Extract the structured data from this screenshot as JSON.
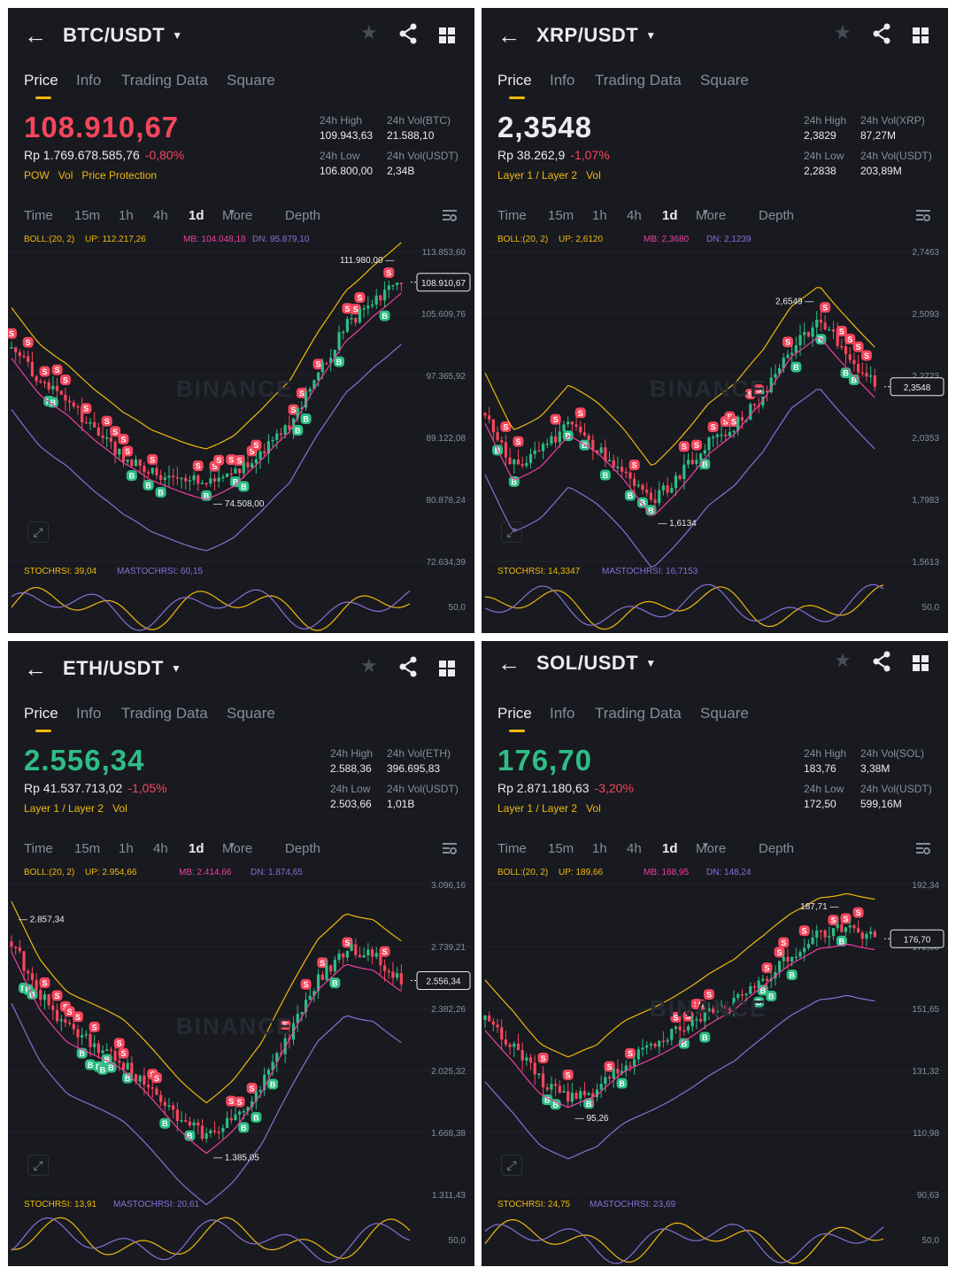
{
  "colors": {
    "bg": "#181a20",
    "up": "#2ebd85",
    "down": "#f6465d",
    "accent": "#f0b90b",
    "text": "#eaecef",
    "muted": "#848e9c",
    "mb": "#ef3fa0",
    "dn": "#8a6fd6"
  },
  "icons": {
    "back": "arrow-left-icon",
    "caret": "caret-down-icon",
    "favorite": "star-icon",
    "share": "share-icon",
    "layout": "grid-icon",
    "settings": "chart-settings-icon",
    "expand": "expand-icon"
  },
  "tabs": [
    "Price",
    "Info",
    "Trading Data",
    "Square"
  ],
  "timeframes": [
    "Time",
    "15m",
    "1h",
    "4h",
    "1d",
    "More",
    "Depth"
  ],
  "selected_timeframe": "1d",
  "watermark": "BINANCE",
  "panels": [
    {
      "pair": "BTC/USDT",
      "price": "108.910,67",
      "price_color": "down",
      "fiat": "Rp 1.769.678.585,76",
      "change": "-0,80%",
      "tags": [
        "POW",
        "Vol",
        "Price Protection"
      ],
      "stats": {
        "high_label": "24h High",
        "high": "109.943,63",
        "vol1_label": "24h Vol(BTC)",
        "vol1": "21.588,10",
        "low_label": "24h Low",
        "low": "106.800,00",
        "vol2_label": "24h Vol(USDT)",
        "vol2": "2,34B"
      },
      "boll": {
        "label": "BOLL:(20, 2)",
        "up": "UP: 112.217,26",
        "mb": "MB: 104.048,18",
        "dn": "DN: 95.879,10"
      },
      "stoch": {
        "k": "STOCHRSI: 39,04",
        "d": "MASTOCHRSI: 60,15"
      },
      "y_ticks": [
        "113.853,60",
        "105.609,76",
        "97.365,92",
        "89.122,08",
        "80.878,24",
        "72.634,39"
      ],
      "stoch_tick": "50,0",
      "current_label": "108.910,67",
      "high_marker": "111.980,00",
      "low_marker": "74.508,00"
    },
    {
      "pair": "XRP/USDT",
      "price": "2,3548",
      "price_color": "neutral",
      "fiat": "Rp 38.262,9",
      "change": "-1,07%",
      "tags": [
        "Layer 1 / Layer 2",
        "Vol"
      ],
      "stats": {
        "high_label": "24h High",
        "high": "2,3829",
        "vol1_label": "24h Vol(XRP)",
        "vol1": "87,27M",
        "low_label": "24h Low",
        "low": "2,2838",
        "vol2_label": "24h Vol(USDT)",
        "vol2": "203,89M"
      },
      "boll": {
        "label": "BOLL:(20, 2)",
        "up": "UP: 2,6120",
        "mb": "MB: 2,3680",
        "dn": "DN: 2,1239"
      },
      "stoch": {
        "k": "STOCHRSI: 14,3347",
        "d": "MASTOCHRSI: 16,7153"
      },
      "y_ticks": [
        "2,7463",
        "2,5093",
        "2,2723",
        "2,0353",
        "1,7983",
        "1,5613"
      ],
      "stoch_tick": "50,0",
      "current_label": "2,3548",
      "high_marker": "2,6549",
      "low_marker": "1,6134"
    },
    {
      "pair": "ETH/USDT",
      "price": "2.556,34",
      "price_color": "up",
      "fiat": "Rp 41.537.713,02",
      "change": "-1,05%",
      "tags": [
        "Layer 1 / Layer 2",
        "Vol"
      ],
      "stats": {
        "high_label": "24h High",
        "high": "2.588,36",
        "vol1_label": "24h Vol(ETH)",
        "vol1": "396.695,83",
        "low_label": "24h Low",
        "low": "2.503,66",
        "vol2_label": "24h Vol(USDT)",
        "vol2": "1,01B"
      },
      "boll": {
        "label": "BOLL:(20, 2)",
        "up": "UP: 2.954,66",
        "mb": "MB: 2.414,66",
        "dn": "DN: 1.874,65"
      },
      "stoch": {
        "k": "STOCHRSI: 13,91",
        "d": "MASTOCHRSI: 20,61"
      },
      "y_ticks": [
        "3.096,16",
        "2.739,21",
        "2.382,26",
        "2.025,32",
        "1.668,38",
        "1.311,43"
      ],
      "stoch_tick": "50,0",
      "current_label": "2.556,34",
      "high_marker": "2.857,34",
      "low_marker": "1.385,05"
    },
    {
      "pair": "SOL/USDT",
      "price": "176,70",
      "price_color": "up",
      "fiat": "Rp 2.871.180,63",
      "change": "-3,20%",
      "tags": [
        "Layer 1 / Layer 2",
        "Vol"
      ],
      "stats": {
        "high_label": "24h High",
        "high": "183,76",
        "vol1_label": "24h Vol(SOL)",
        "vol1": "3,38M",
        "low_label": "24h Low",
        "low": "172,50",
        "vol2_label": "24h Vol(USDT)",
        "vol2": "599,16M"
      },
      "boll": {
        "label": "BOLL:(20, 2)",
        "up": "UP: 189,66",
        "mb": "MB: 168,95",
        "dn": "DN: 148,24"
      },
      "stoch": {
        "k": "STOCHRSI: 24,75",
        "d": "MASTOCHRSI: 23,69"
      },
      "y_ticks": [
        "192,34",
        "172,00",
        "151,65",
        "131,32",
        "110,98",
        "90,63"
      ],
      "stoch_tick": "50,0",
      "current_label": "176,70",
      "high_marker": "187,71",
      "low_marker": "95,26"
    }
  ]
}
